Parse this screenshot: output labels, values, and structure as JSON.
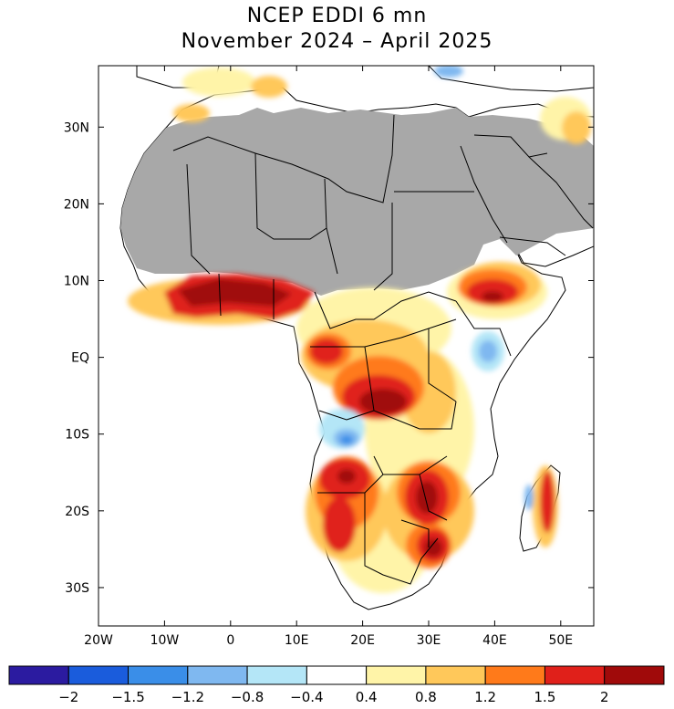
{
  "title": {
    "line1": "NCEP EDDI 6 mn",
    "line2": "November 2024 – April 2025"
  },
  "map": {
    "region": "Africa",
    "lon_range": [
      -20,
      55
    ],
    "lat_range": [
      -35,
      38
    ],
    "x_ticks": [
      "20W",
      "10W",
      "0",
      "10E",
      "20E",
      "30E",
      "40E",
      "50E"
    ],
    "y_ticks": [
      "30N",
      "20N",
      "10N",
      "EQ",
      "10S",
      "20S",
      "30S"
    ],
    "masked_color": "#a8a8a8",
    "masked_region": "arid areas of North Africa and Arabia"
  },
  "colorbar": {
    "labels": [
      "−2",
      "−1.5",
      "−1.2",
      "−0.8",
      "−0.4",
      "0.4",
      "0.8",
      "1.2",
      "1.5",
      "2"
    ],
    "colors": [
      "#2b1ba0",
      "#1a5cdc",
      "#3a8ee8",
      "#7fb8f0",
      "#b4e6f7",
      "#ffffff",
      "#fff4a8",
      "#ffc85a",
      "#ff7a1a",
      "#e0201a",
      "#a00a0a"
    ]
  }
}
